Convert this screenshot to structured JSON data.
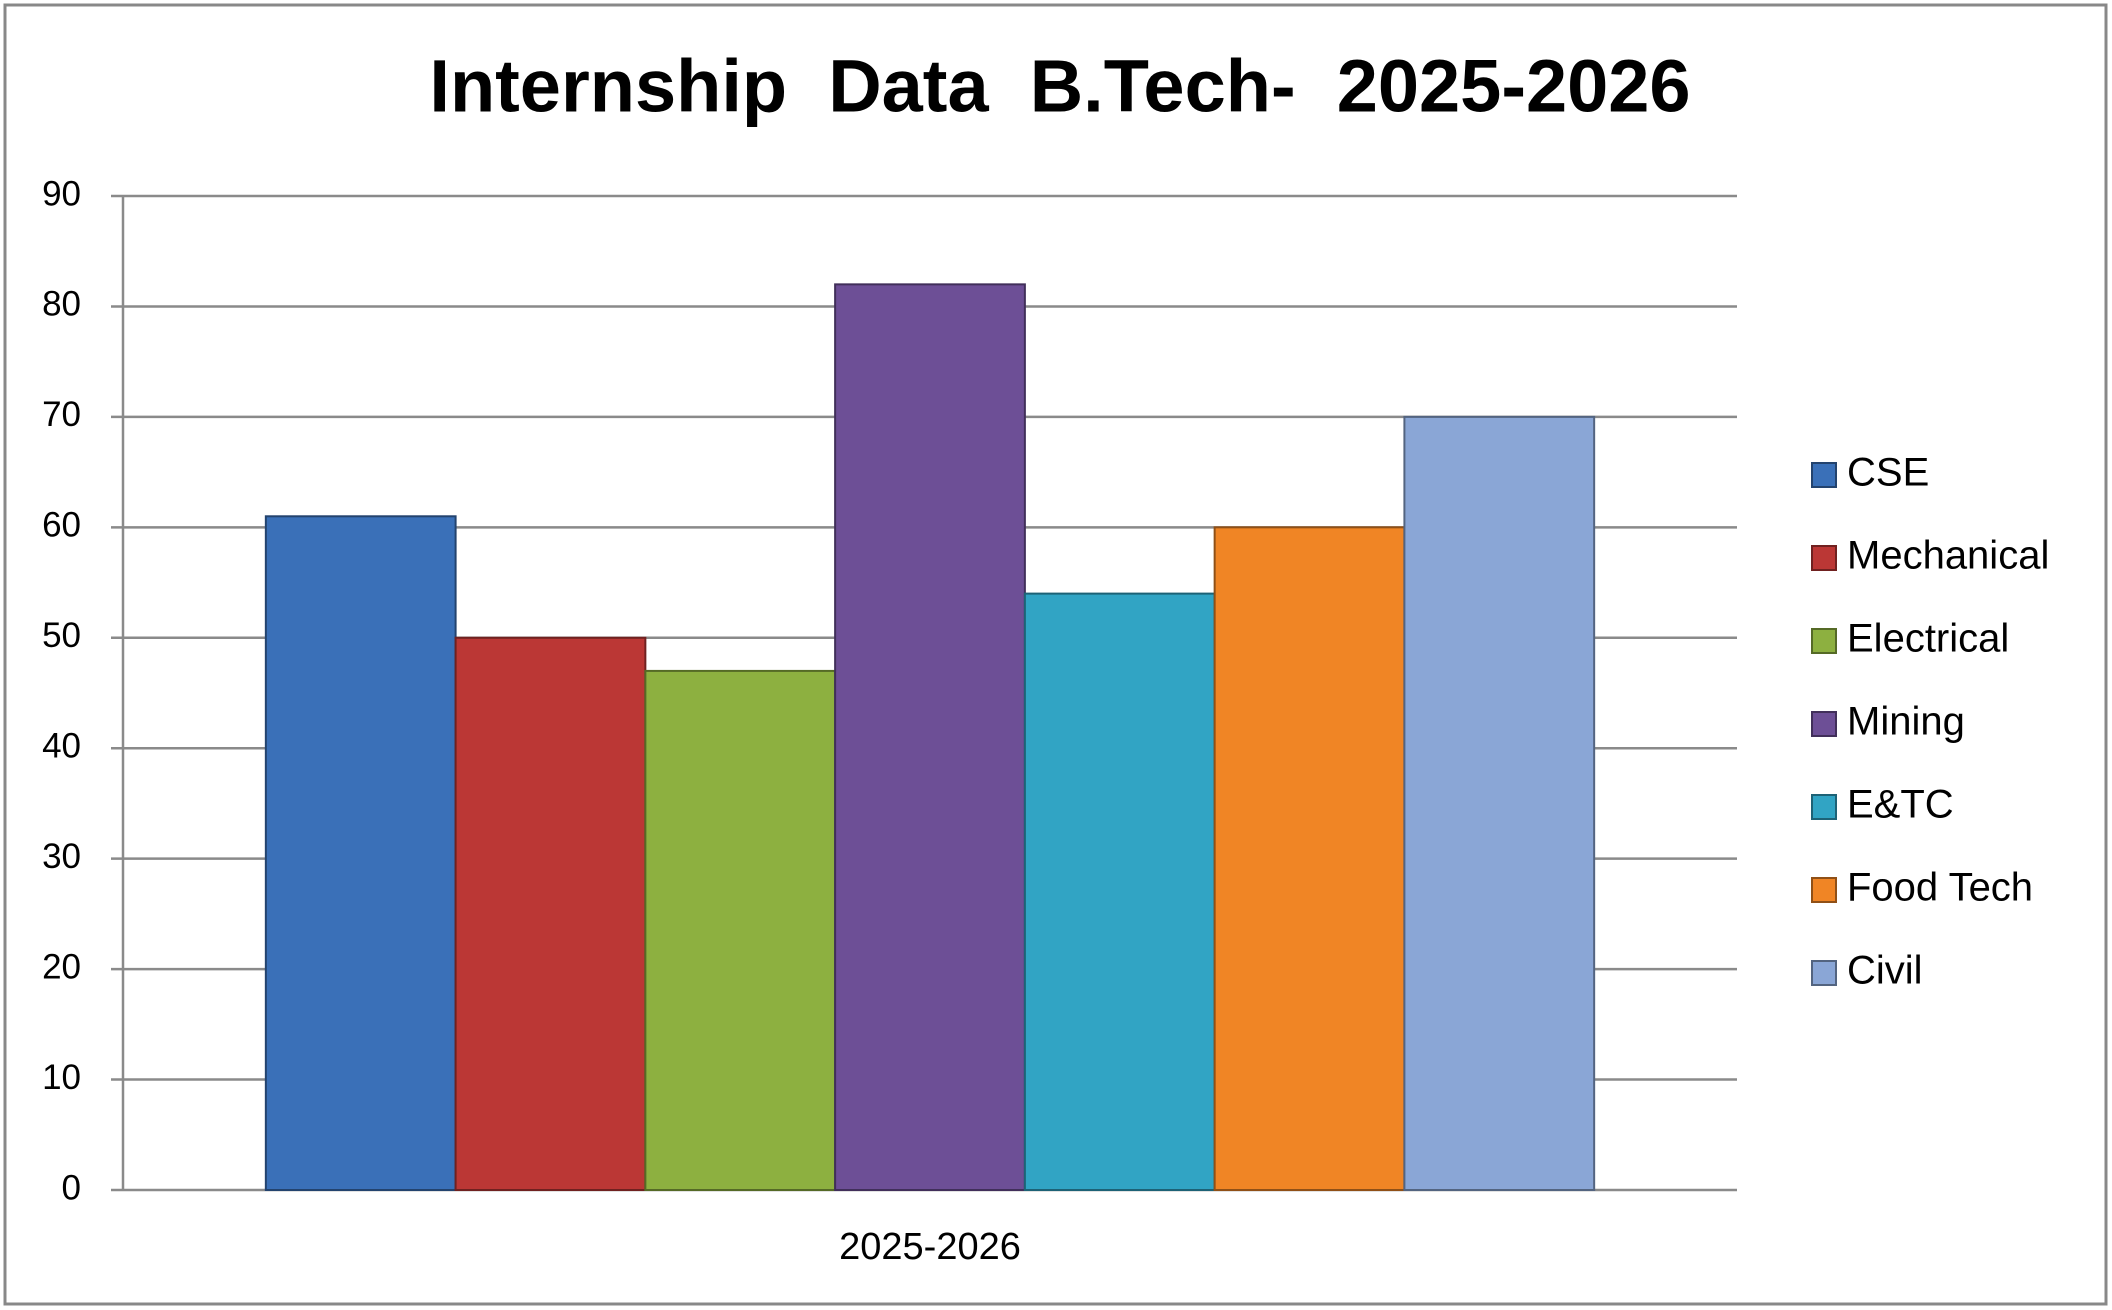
{
  "chart_data": {
    "type": "bar",
    "title": "Internship  Data  B.Tech-  2025-2026",
    "categories": [
      "2025-2026"
    ],
    "series": [
      {
        "name": "CSE",
        "color": "#3a70b8",
        "values": [
          61
        ]
      },
      {
        "name": "Mechanical",
        "color": "#bb3735",
        "values": [
          50
        ]
      },
      {
        "name": "Electrical",
        "color": "#8db040",
        "values": [
          47
        ]
      },
      {
        "name": "Mining",
        "color": "#6d4f96",
        "values": [
          82
        ]
      },
      {
        "name": "E&TC",
        "color": "#31a4c4",
        "values": [
          54
        ]
      },
      {
        "name": "Food Tech",
        "color": "#f08525",
        "values": [
          60
        ]
      },
      {
        "name": "Civil",
        "color": "#8aa6d6",
        "values": [
          70
        ]
      }
    ],
    "ylim": [
      0,
      90
    ],
    "yticks": [
      0,
      10,
      20,
      30,
      40,
      50,
      60,
      70,
      80,
      90
    ],
    "grid": true,
    "legend": "right"
  }
}
